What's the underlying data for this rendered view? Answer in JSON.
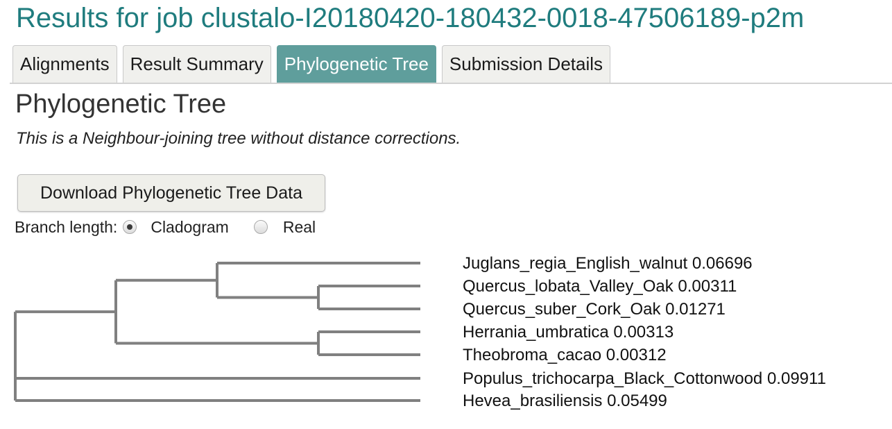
{
  "page": {
    "title": "Results for job clustalo-I20180420-180432-0018-47506189-p2m"
  },
  "tabs": [
    {
      "label": "Alignments",
      "active": false
    },
    {
      "label": "Result Summary",
      "active": false
    },
    {
      "label": "Phylogenetic Tree",
      "active": true
    },
    {
      "label": "Submission Details",
      "active": false
    }
  ],
  "section": {
    "title": "Phylogenetic Tree",
    "description": "This is a Neighbour-joining tree without distance corrections."
  },
  "download_button": {
    "label": "Download Phylogenetic Tree Data"
  },
  "branch_length": {
    "label": "Branch length:",
    "options": [
      {
        "label": "Cladogram",
        "selected": true
      },
      {
        "label": "Real",
        "selected": false
      }
    ]
  },
  "tree": {
    "leaves": [
      {
        "name": "Juglans_regia_English_walnut",
        "distance": "0.06696"
      },
      {
        "name": "Quercus_lobata_Valley_Oak",
        "distance": "0.00311"
      },
      {
        "name": "Quercus_suber_Cork_Oak",
        "distance": "0.01271"
      },
      {
        "name": "Herrania_umbratica",
        "distance": "0.00313"
      },
      {
        "name": "Theobroma_cacao",
        "distance": "0.00312"
      },
      {
        "name": "Populus_trichocarpa_Black_Cottonwood",
        "distance": "0.09911"
      },
      {
        "name": "Hevea_brasiliensis",
        "distance": "0.05499"
      }
    ],
    "branch_color": "#808080"
  },
  "colors": {
    "title": "#1f7c7e",
    "active_tab": "#5f9e9c"
  }
}
